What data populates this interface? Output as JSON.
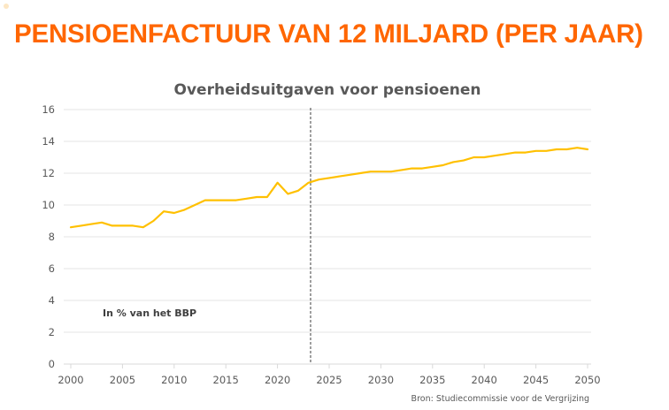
{
  "slide": {
    "title": "PENSIOENFACTUUR VAN 12 MILJARD (PER JAAR)",
    "title_color": "#FF6600",
    "source": "Bron: Studiecommissie voor de Vergrijzing"
  },
  "chart_data": {
    "type": "line",
    "title": "Overheidsuitgaven voor pensioenen",
    "xlabel": "",
    "ylabel": "",
    "annotation": "In % van het BBP",
    "xlim": [
      2000,
      2050
    ],
    "ylim": [
      0,
      16
    ],
    "x_ticks": [
      2000,
      2005,
      2010,
      2015,
      2020,
      2025,
      2030,
      2035,
      2040,
      2045,
      2050
    ],
    "y_ticks": [
      0,
      2,
      4,
      6,
      8,
      10,
      12,
      14,
      16
    ],
    "grid": "horizontal",
    "legend": "none",
    "reference_line": {
      "x": 2023.2,
      "style": "dashed"
    },
    "series": [
      {
        "name": "Overheidsuitgaven voor pensioenen (% BBP)",
        "color": "#FFC000",
        "x": [
          2000,
          2001,
          2002,
          2003,
          2004,
          2005,
          2006,
          2007,
          2008,
          2009,
          2010,
          2011,
          2012,
          2013,
          2014,
          2015,
          2016,
          2017,
          2018,
          2019,
          2020,
          2021,
          2022,
          2023,
          2024,
          2025,
          2026,
          2027,
          2028,
          2029,
          2030,
          2031,
          2032,
          2033,
          2034,
          2035,
          2036,
          2037,
          2038,
          2039,
          2040,
          2041,
          2042,
          2043,
          2044,
          2045,
          2046,
          2047,
          2048,
          2049,
          2050
        ],
        "values": [
          8.6,
          8.7,
          8.8,
          8.9,
          8.7,
          8.7,
          8.7,
          8.6,
          9.0,
          9.6,
          9.5,
          9.7,
          10.0,
          10.3,
          10.3,
          10.3,
          10.3,
          10.4,
          10.5,
          10.5,
          11.4,
          10.7,
          10.9,
          11.4,
          11.6,
          11.7,
          11.8,
          11.9,
          12.0,
          12.1,
          12.1,
          12.1,
          12.2,
          12.3,
          12.3,
          12.4,
          12.5,
          12.7,
          12.8,
          13.0,
          13.0,
          13.1,
          13.2,
          13.3,
          13.3,
          13.4,
          13.4,
          13.5,
          13.5,
          13.6,
          13.5
        ]
      }
    ]
  }
}
